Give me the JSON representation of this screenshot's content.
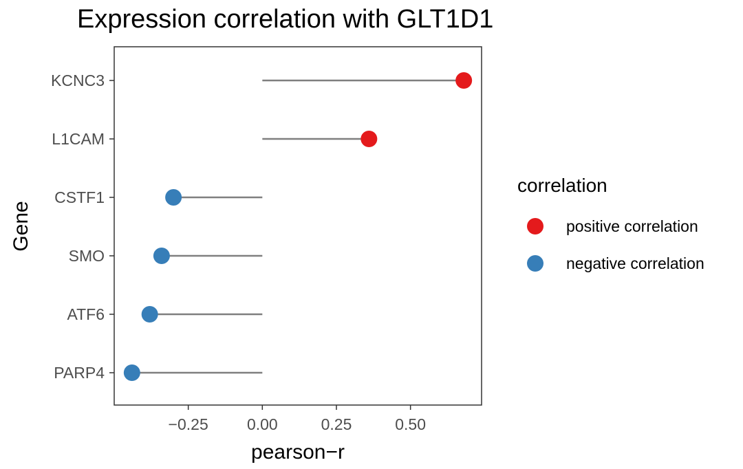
{
  "chart_data": {
    "type": "lollipop",
    "title": "Expression correlation with GLT1D1",
    "xlabel": "pearson−r",
    "ylabel": "Gene",
    "xlim": [
      -0.5,
      0.74
    ],
    "x_ticks": [
      -0.25,
      0.0,
      0.25,
      0.5
    ],
    "x_tick_labels": [
      "−0.25",
      "0.00",
      "0.25",
      "0.50"
    ],
    "grid": false,
    "genes": [
      "KCNC3",
      "L1CAM",
      "CSTF1",
      "SMO",
      "ATF6",
      "PARP4"
    ],
    "values": [
      0.68,
      0.36,
      -0.3,
      -0.34,
      -0.38,
      -0.44
    ],
    "categories": [
      "positive correlation",
      "positive correlation",
      "negative correlation",
      "negative correlation",
      "negative correlation",
      "negative correlation"
    ],
    "legend": {
      "title": "correlation",
      "position": "right",
      "entries": [
        {
          "label": "positive correlation",
          "color": "#e41a1c"
        },
        {
          "label": "negative correlation",
          "color": "#377eb8"
        }
      ]
    },
    "stem_color": "#7f7f7f"
  }
}
